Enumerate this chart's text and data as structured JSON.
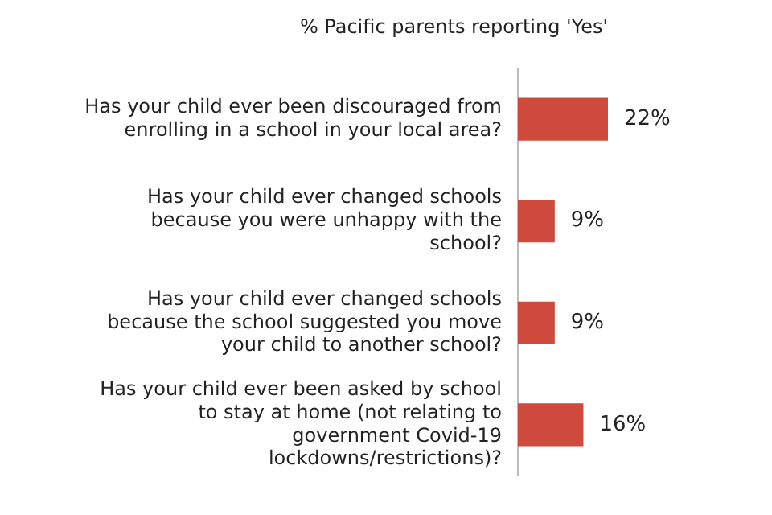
{
  "chart_data": {
    "type": "bar",
    "orientation": "horizontal",
    "title": "% Pacific parents reporting 'Yes'",
    "categories": [
      "Has your child ever been discouraged from enrolling in a school in your local area?",
      "Has your child ever changed schools because you were unhappy with the school?",
      "Has your child ever changed schools because the school suggested you move your child to another school?",
      "Has your child ever been asked by school to stay at home (not relating to government Covid-19 lockdowns/restrictions)?"
    ],
    "values": [
      22,
      9,
      9,
      16
    ],
    "value_labels": [
      "22%",
      "9%",
      "9%",
      "16%"
    ],
    "color": "#cd4a3c",
    "legend": false,
    "tick_labels": "y"
  }
}
